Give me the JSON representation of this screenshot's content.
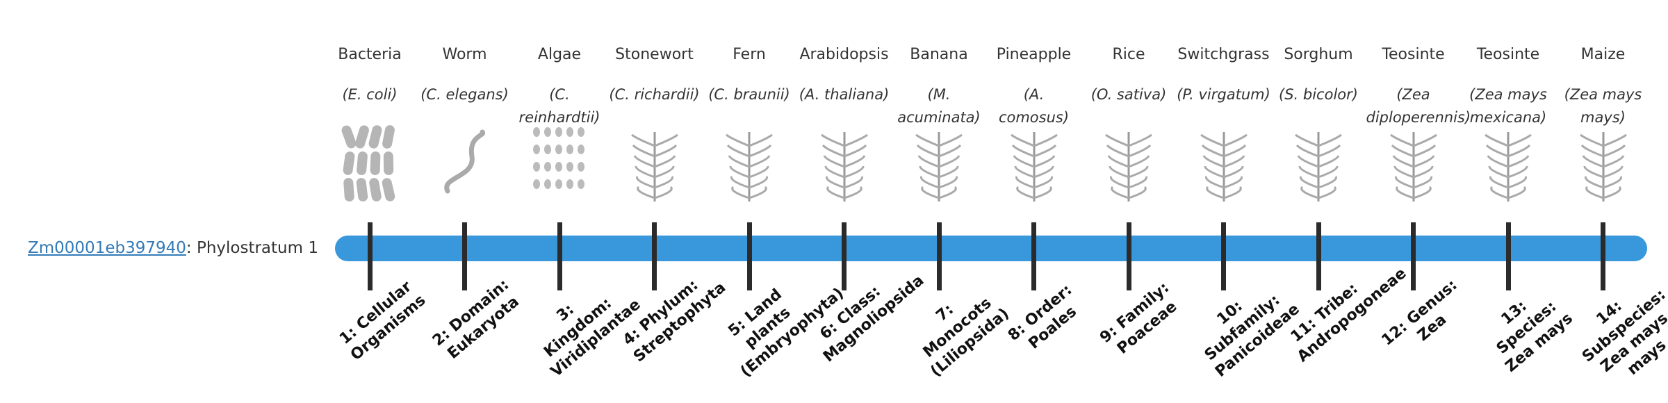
{
  "gene": {
    "id": "Zm00001eb397940",
    "label": ": Phylostratum 1"
  },
  "strata": [
    {
      "name": "Bacteria",
      "species": "(E. coli)",
      "rank": "1: Cellular Organisms"
    },
    {
      "name": "Worm",
      "species": "(C. elegans)",
      "rank": "2: Domain: Eukaryota"
    },
    {
      "name": "Algae",
      "species": "(C. reinhardtii)",
      "rank": "3: Kingdom: Viridiplantae"
    },
    {
      "name": "Stonewort",
      "species": "(C. richardii)",
      "rank": "4: Phylum: Streptophyta"
    },
    {
      "name": "Fern",
      "species": "(C. braunii)",
      "rank": "5: Land plants (Embryophyta)"
    },
    {
      "name": "Arabidopsis",
      "species": "(A. thaliana)",
      "rank": "6: Class: Magnoliopsida"
    },
    {
      "name": "Banana",
      "species": "(M. acuminata)",
      "rank": "7: Monocots (Liliopsida)"
    },
    {
      "name": "Pineapple",
      "species": "(A. comosus)",
      "rank": "8: Order: Poales"
    },
    {
      "name": "Rice",
      "species": "(O. sativa)",
      "rank": "9: Family: Poaceae"
    },
    {
      "name": "Switchgrass",
      "species": "(P. virgatum)",
      "rank": "10: Subfamily: Panicoideae"
    },
    {
      "name": "Sorghum",
      "species": "(S. bicolor)",
      "rank": "11: Tribe: Andropogoneae"
    },
    {
      "name": "Teosinte",
      "species": "(Zea diploperennis)",
      "rank": "12: Genus: Zea"
    },
    {
      "name": "Teosinte",
      "species": "(Zea mays mexicana)",
      "rank": "13: Species: Zea mays"
    },
    {
      "name": "Maize",
      "species": "(Zea mays mays)",
      "rank": "14: Subspecies: Zea mays mays"
    }
  ]
}
